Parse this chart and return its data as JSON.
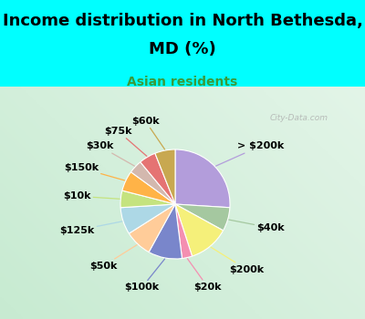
{
  "title_line1": "Income distribution in North Bethesda,",
  "title_line2": "MD (%)",
  "subtitle": "Asian residents",
  "bg_color": "#00FFFF",
  "chart_bg_color": "#ddf0e8",
  "watermark": "City-Data.com",
  "labels": [
    "> $200k",
    "$40k",
    "$200k",
    "$20k",
    "$100k",
    "$50k",
    "$125k",
    "$10k",
    "$150k",
    "$30k",
    "$75k",
    "$60k"
  ],
  "values": [
    26,
    7,
    12,
    3,
    10,
    8,
    8,
    5,
    6,
    4,
    5,
    6
  ],
  "colors": [
    "#b39ddb",
    "#a5c8a0",
    "#f5f07a",
    "#f48fb1",
    "#7986cb",
    "#ffcc99",
    "#add8e6",
    "#c5e37f",
    "#ffb347",
    "#d3b8ae",
    "#e57373",
    "#c8a850"
  ],
  "startangle": 90,
  "title_fontsize": 13,
  "subtitle_fontsize": 10,
  "label_fontsize": 8
}
